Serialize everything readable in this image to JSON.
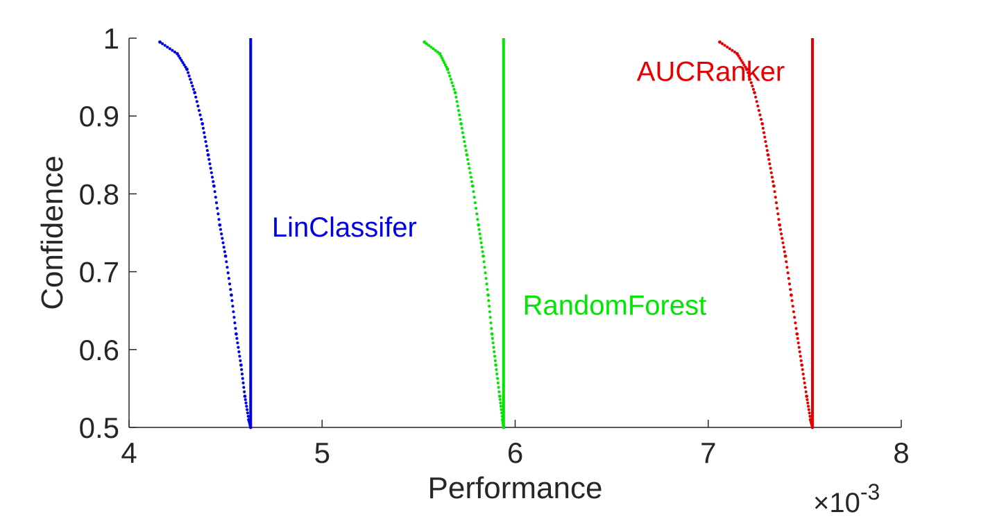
{
  "chart_data": {
    "type": "scatter",
    "title": "",
    "xlabel": "Performance",
    "ylabel": "Confidence",
    "x_multiplier_label": "×10",
    "x_multiplier_exponent": "-3",
    "xlim": [
      4,
      8
    ],
    "ylim": [
      0.5,
      1
    ],
    "x_ticks": [
      "4",
      "5",
      "6",
      "7",
      "8"
    ],
    "y_ticks": [
      "0.5",
      "0.6",
      "0.7",
      "0.8",
      "0.9",
      "1"
    ],
    "grid": false,
    "series": [
      {
        "name": "LinClassifer",
        "color": "#0000e6",
        "threshold": 4.63,
        "points": [
          {
            "x": 4.16,
            "y": 0.995
          },
          {
            "x": 4.25,
            "y": 0.98
          },
          {
            "x": 4.3,
            "y": 0.96
          },
          {
            "x": 4.34,
            "y": 0.93
          },
          {
            "x": 4.38,
            "y": 0.89
          },
          {
            "x": 4.41,
            "y": 0.85
          },
          {
            "x": 4.44,
            "y": 0.81
          },
          {
            "x": 4.47,
            "y": 0.76
          },
          {
            "x": 4.5,
            "y": 0.72
          },
          {
            "x": 4.53,
            "y": 0.67
          },
          {
            "x": 4.555,
            "y": 0.62
          },
          {
            "x": 4.58,
            "y": 0.58
          },
          {
            "x": 4.6,
            "y": 0.54
          },
          {
            "x": 4.62,
            "y": 0.51
          },
          {
            "x": 4.63,
            "y": 0.5
          }
        ]
      },
      {
        "name": "RandomForest",
        "color": "#00e600",
        "threshold": 5.94,
        "points": [
          {
            "x": 5.53,
            "y": 0.995
          },
          {
            "x": 5.61,
            "y": 0.98
          },
          {
            "x": 5.65,
            "y": 0.96
          },
          {
            "x": 5.69,
            "y": 0.93
          },
          {
            "x": 5.72,
            "y": 0.89
          },
          {
            "x": 5.75,
            "y": 0.85
          },
          {
            "x": 5.78,
            "y": 0.81
          },
          {
            "x": 5.81,
            "y": 0.76
          },
          {
            "x": 5.835,
            "y": 0.72
          },
          {
            "x": 5.86,
            "y": 0.67
          },
          {
            "x": 5.88,
            "y": 0.62
          },
          {
            "x": 5.9,
            "y": 0.58
          },
          {
            "x": 5.92,
            "y": 0.54
          },
          {
            "x": 5.935,
            "y": 0.51
          },
          {
            "x": 5.94,
            "y": 0.5
          }
        ]
      },
      {
        "name": "AUCRanker",
        "color": "#e60000",
        "threshold": 7.54,
        "points": [
          {
            "x": 7.06,
            "y": 0.995
          },
          {
            "x": 7.15,
            "y": 0.98
          },
          {
            "x": 7.2,
            "y": 0.96
          },
          {
            "x": 7.24,
            "y": 0.93
          },
          {
            "x": 7.28,
            "y": 0.89
          },
          {
            "x": 7.31,
            "y": 0.85
          },
          {
            "x": 7.34,
            "y": 0.81
          },
          {
            "x": 7.37,
            "y": 0.76
          },
          {
            "x": 7.4,
            "y": 0.72
          },
          {
            "x": 7.43,
            "y": 0.67
          },
          {
            "x": 7.46,
            "y": 0.62
          },
          {
            "x": 7.485,
            "y": 0.58
          },
          {
            "x": 7.51,
            "y": 0.54
          },
          {
            "x": 7.53,
            "y": 0.51
          },
          {
            "x": 7.54,
            "y": 0.5
          }
        ]
      }
    ]
  }
}
